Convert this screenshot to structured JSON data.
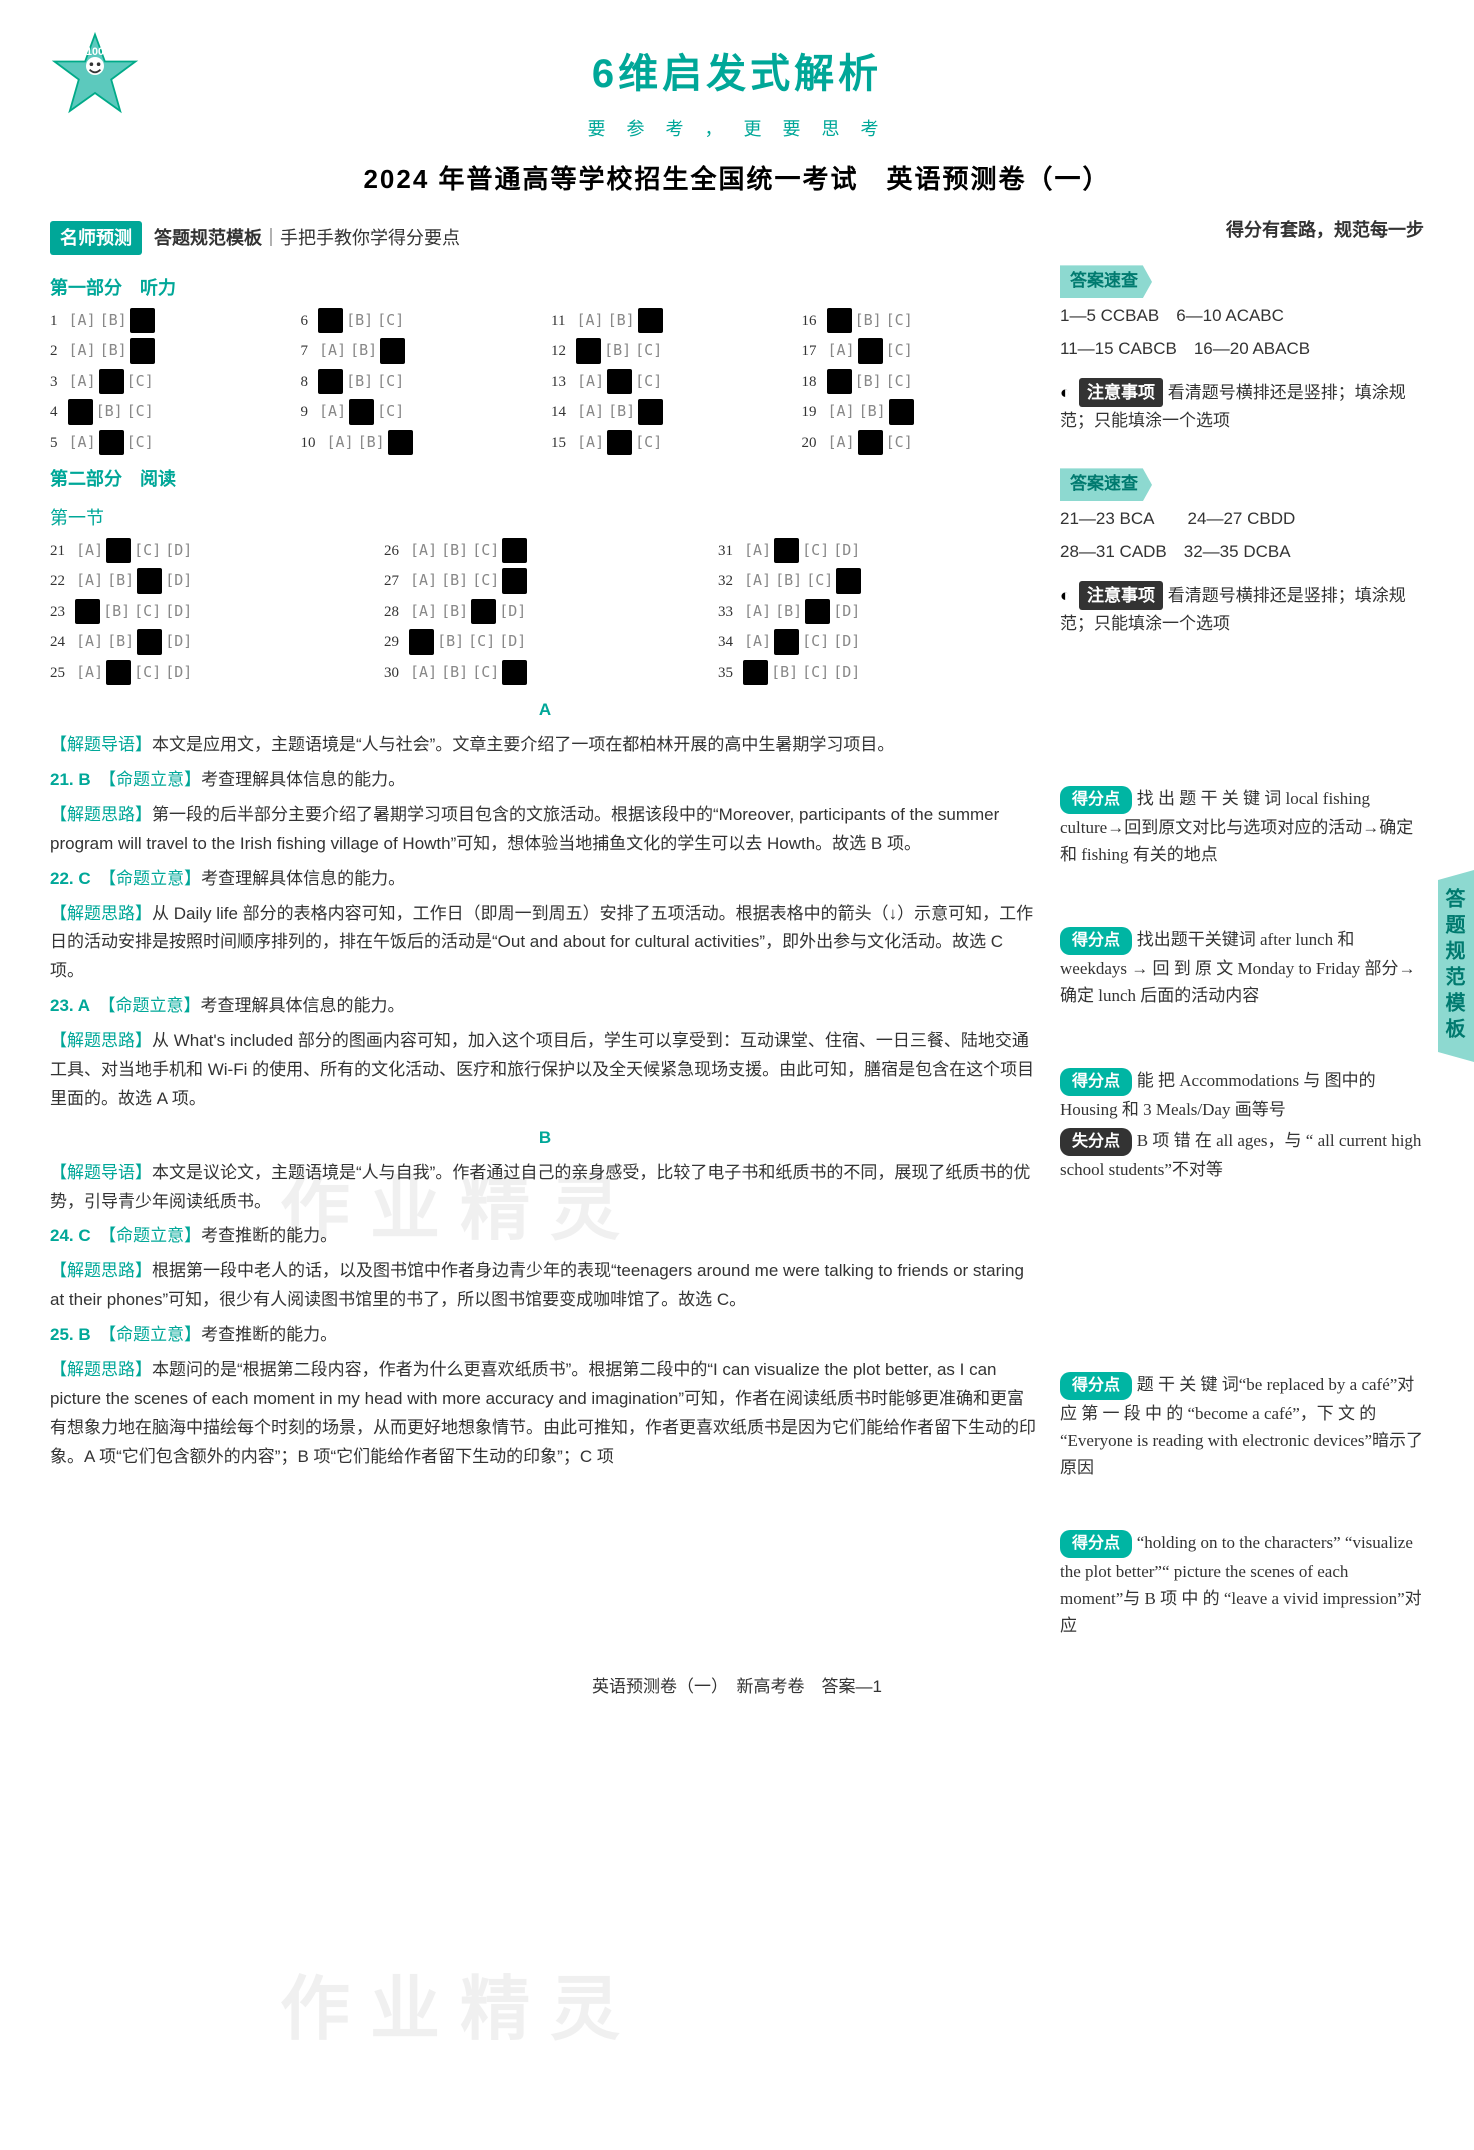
{
  "header": {
    "title_6d": "6维启发式解析",
    "slogan": "要 参 考 ， 更 要 思 考",
    "exam_title": "2024 年普通高等学校招生全国统一考试　英语预测卷（一）",
    "master_tag": "名师预测",
    "master_text_bold": "答题规范模板",
    "master_text_rest": "｜手把手教你学得分要点",
    "right_note": "得分有套路，规范每一步"
  },
  "listening": {
    "heading": "第一部分　听力",
    "items": [
      {
        "n": 1,
        "ans": "C"
      },
      {
        "n": 2,
        "ans": "C"
      },
      {
        "n": 3,
        "ans": "B"
      },
      {
        "n": 4,
        "ans": "A"
      },
      {
        "n": 5,
        "ans": "B"
      },
      {
        "n": 6,
        "ans": "A"
      },
      {
        "n": 7,
        "ans": "C"
      },
      {
        "n": 8,
        "ans": "A"
      },
      {
        "n": 9,
        "ans": "B"
      },
      {
        "n": 10,
        "ans": "C"
      },
      {
        "n": 11,
        "ans": "C"
      },
      {
        "n": 12,
        "ans": "A"
      },
      {
        "n": 13,
        "ans": "B"
      },
      {
        "n": 14,
        "ans": "C"
      },
      {
        "n": 15,
        "ans": "B"
      },
      {
        "n": 16,
        "ans": "A"
      },
      {
        "n": 17,
        "ans": "B"
      },
      {
        "n": 18,
        "ans": "A"
      },
      {
        "n": 19,
        "ans": "C"
      },
      {
        "n": 20,
        "ans": "B"
      }
    ]
  },
  "reading": {
    "heading": "第二部分　阅读",
    "sub": "第一节",
    "items": [
      {
        "n": 21,
        "opts": 4,
        "ans": "B"
      },
      {
        "n": 22,
        "opts": 4,
        "ans": "C"
      },
      {
        "n": 23,
        "opts": 4,
        "ans": "A"
      },
      {
        "n": 24,
        "opts": 4,
        "ans": "C"
      },
      {
        "n": 25,
        "opts": 4,
        "ans": "B"
      },
      {
        "n": 26,
        "opts": 4,
        "ans": "D"
      },
      {
        "n": 27,
        "opts": 4,
        "ans": "D"
      },
      {
        "n": 28,
        "opts": 4,
        "ans": "C"
      },
      {
        "n": 29,
        "opts": 4,
        "ans": "A"
      },
      {
        "n": 30,
        "opts": 4,
        "ans": "D"
      },
      {
        "n": 31,
        "opts": 4,
        "ans": "B"
      },
      {
        "n": 32,
        "opts": 4,
        "ans": "D"
      },
      {
        "n": 33,
        "opts": 4,
        "ans": "C"
      },
      {
        "n": 34,
        "opts": 4,
        "ans": "B"
      },
      {
        "n": 35,
        "opts": 4,
        "ans": "A"
      }
    ]
  },
  "side": {
    "quick1_tag": "答案速查",
    "quick1_lines": [
      "1—5 CCBAB　6—10 ACABC",
      "11—15 CABCB　16—20 ABACB"
    ],
    "note1_tag": "注意事项",
    "note1_body": "看清题号横排还是竖排；填涂规范；只能填涂一个选项",
    "quick2_tag": "答案速查",
    "quick2_lines": [
      "21—23 BCA　　24—27 CBDD",
      "28—31 CADB　32—35 DCBA"
    ],
    "note2_tag": "注意事项",
    "note2_body": "看清题号横排还是竖排；填涂规范；只能填涂一个选项",
    "gain21": "找 出 题 干 关 键 词 local fishing culture→回到原文对比与选项对应的活动→确定和 fishing 有关的地点",
    "gain22": "找出题干关键词 after lunch 和 weekdays → 回 到 原 文 Monday to Friday 部分→确定 lunch 后面的活动内容",
    "gain23": "能 把 Accommodations 与 图中的 Housing 和 3 Meals/Day 画等号",
    "lose23": "B 项 错 在 all ages，与 “ all current high school students”不对等",
    "gain24": "题 干 关 键 词“be replaced by a café”对 应 第 一 段 中 的 “become a café”，下 文 的 “Everyone is reading with electronic devices”暗示了原因",
    "gain25": "“holding on to the characters” “visualize the plot better”“ picture the scenes of each moment”与 B 项 中 的 “leave a vivid impression”对应",
    "gain_tag": "得分点",
    "lose_tag": "失分点"
  },
  "explain": {
    "passageA_letter": "A",
    "intro_label": "【解题导语】",
    "introA": "本文是应用文，主题语境是“人与社会”。文章主要介绍了一项在都柏林开展的高中生暑期学习项目。",
    "q21": {
      "num": "21. B",
      "intent_label": "【命题立意】",
      "intent": "考查理解具体信息的能力。",
      "idea_label": "【解题思路】",
      "idea": "第一段的后半部分主要介绍了暑期学习项目包含的文旅活动。根据该段中的“Moreover, participants of the summer program will travel to the Irish fishing village of Howth”可知，想体验当地捕鱼文化的学生可以去 Howth。故选 B 项。"
    },
    "q22": {
      "num": "22. C",
      "intent_label": "【命题立意】",
      "intent": "考查理解具体信息的能力。",
      "idea_label": "【解题思路】",
      "idea": "从 Daily life 部分的表格内容可知，工作日（即周一到周五）安排了五项活动。根据表格中的箭头（↓）示意可知，工作日的活动安排是按照时间顺序排列的，排在午饭后的活动是“Out and about for cultural activities”，即外出参与文化活动。故选 C 项。"
    },
    "q23": {
      "num": "23. A",
      "intent_label": "【命题立意】",
      "intent": "考查理解具体信息的能力。",
      "idea_label": "【解题思路】",
      "idea": "从 What's included 部分的图画内容可知，加入这个项目后，学生可以享受到：互动课堂、住宿、一日三餐、陆地交通工具、对当地手机和 Wi-Fi 的使用、所有的文化活动、医疗和旅行保护以及全天候紧急现场支援。由此可知，膳宿是包含在这个项目里面的。故选 A 项。"
    },
    "passageB_letter": "B",
    "introB": "本文是议论文，主题语境是“人与自我”。作者通过自己的亲身感受，比较了电子书和纸质书的不同，展现了纸质书的优势，引导青少年阅读纸质书。",
    "q24": {
      "num": "24. C",
      "intent_label": "【命题立意】",
      "intent": "考查推断的能力。",
      "idea_label": "【解题思路】",
      "idea": "根据第一段中老人的话，以及图书馆中作者身边青少年的表现“teenagers around me were talking to friends or staring at their phones”可知，很少有人阅读图书馆里的书了，所以图书馆要变成咖啡馆了。故选 C。"
    },
    "q25": {
      "num": "25. B",
      "intent_label": "【命题立意】",
      "intent": "考查推断的能力。",
      "idea_label": "【解题思路】",
      "idea": "本题问的是“根据第二段内容，作者为什么更喜欢纸质书”。根据第二段中的“I can visualize the plot better, as I can picture the scenes of each moment in my head with more accuracy and imagination”可知，作者在阅读纸质书时能够更准确和更富有想象力地在脑海中描绘每个时刻的场景，从而更好地想象情节。由此可推知，作者更喜欢纸质书是因为它们能给作者留下生动的印象。A 项“它们包含额外的内容”；B 项“它们能给作者留下生动的印象”；C 项"
    }
  },
  "footer": "英语预测卷（一）　新高考卷　答案—1",
  "spine": "答题规范模板",
  "watermark": "作业精灵"
}
